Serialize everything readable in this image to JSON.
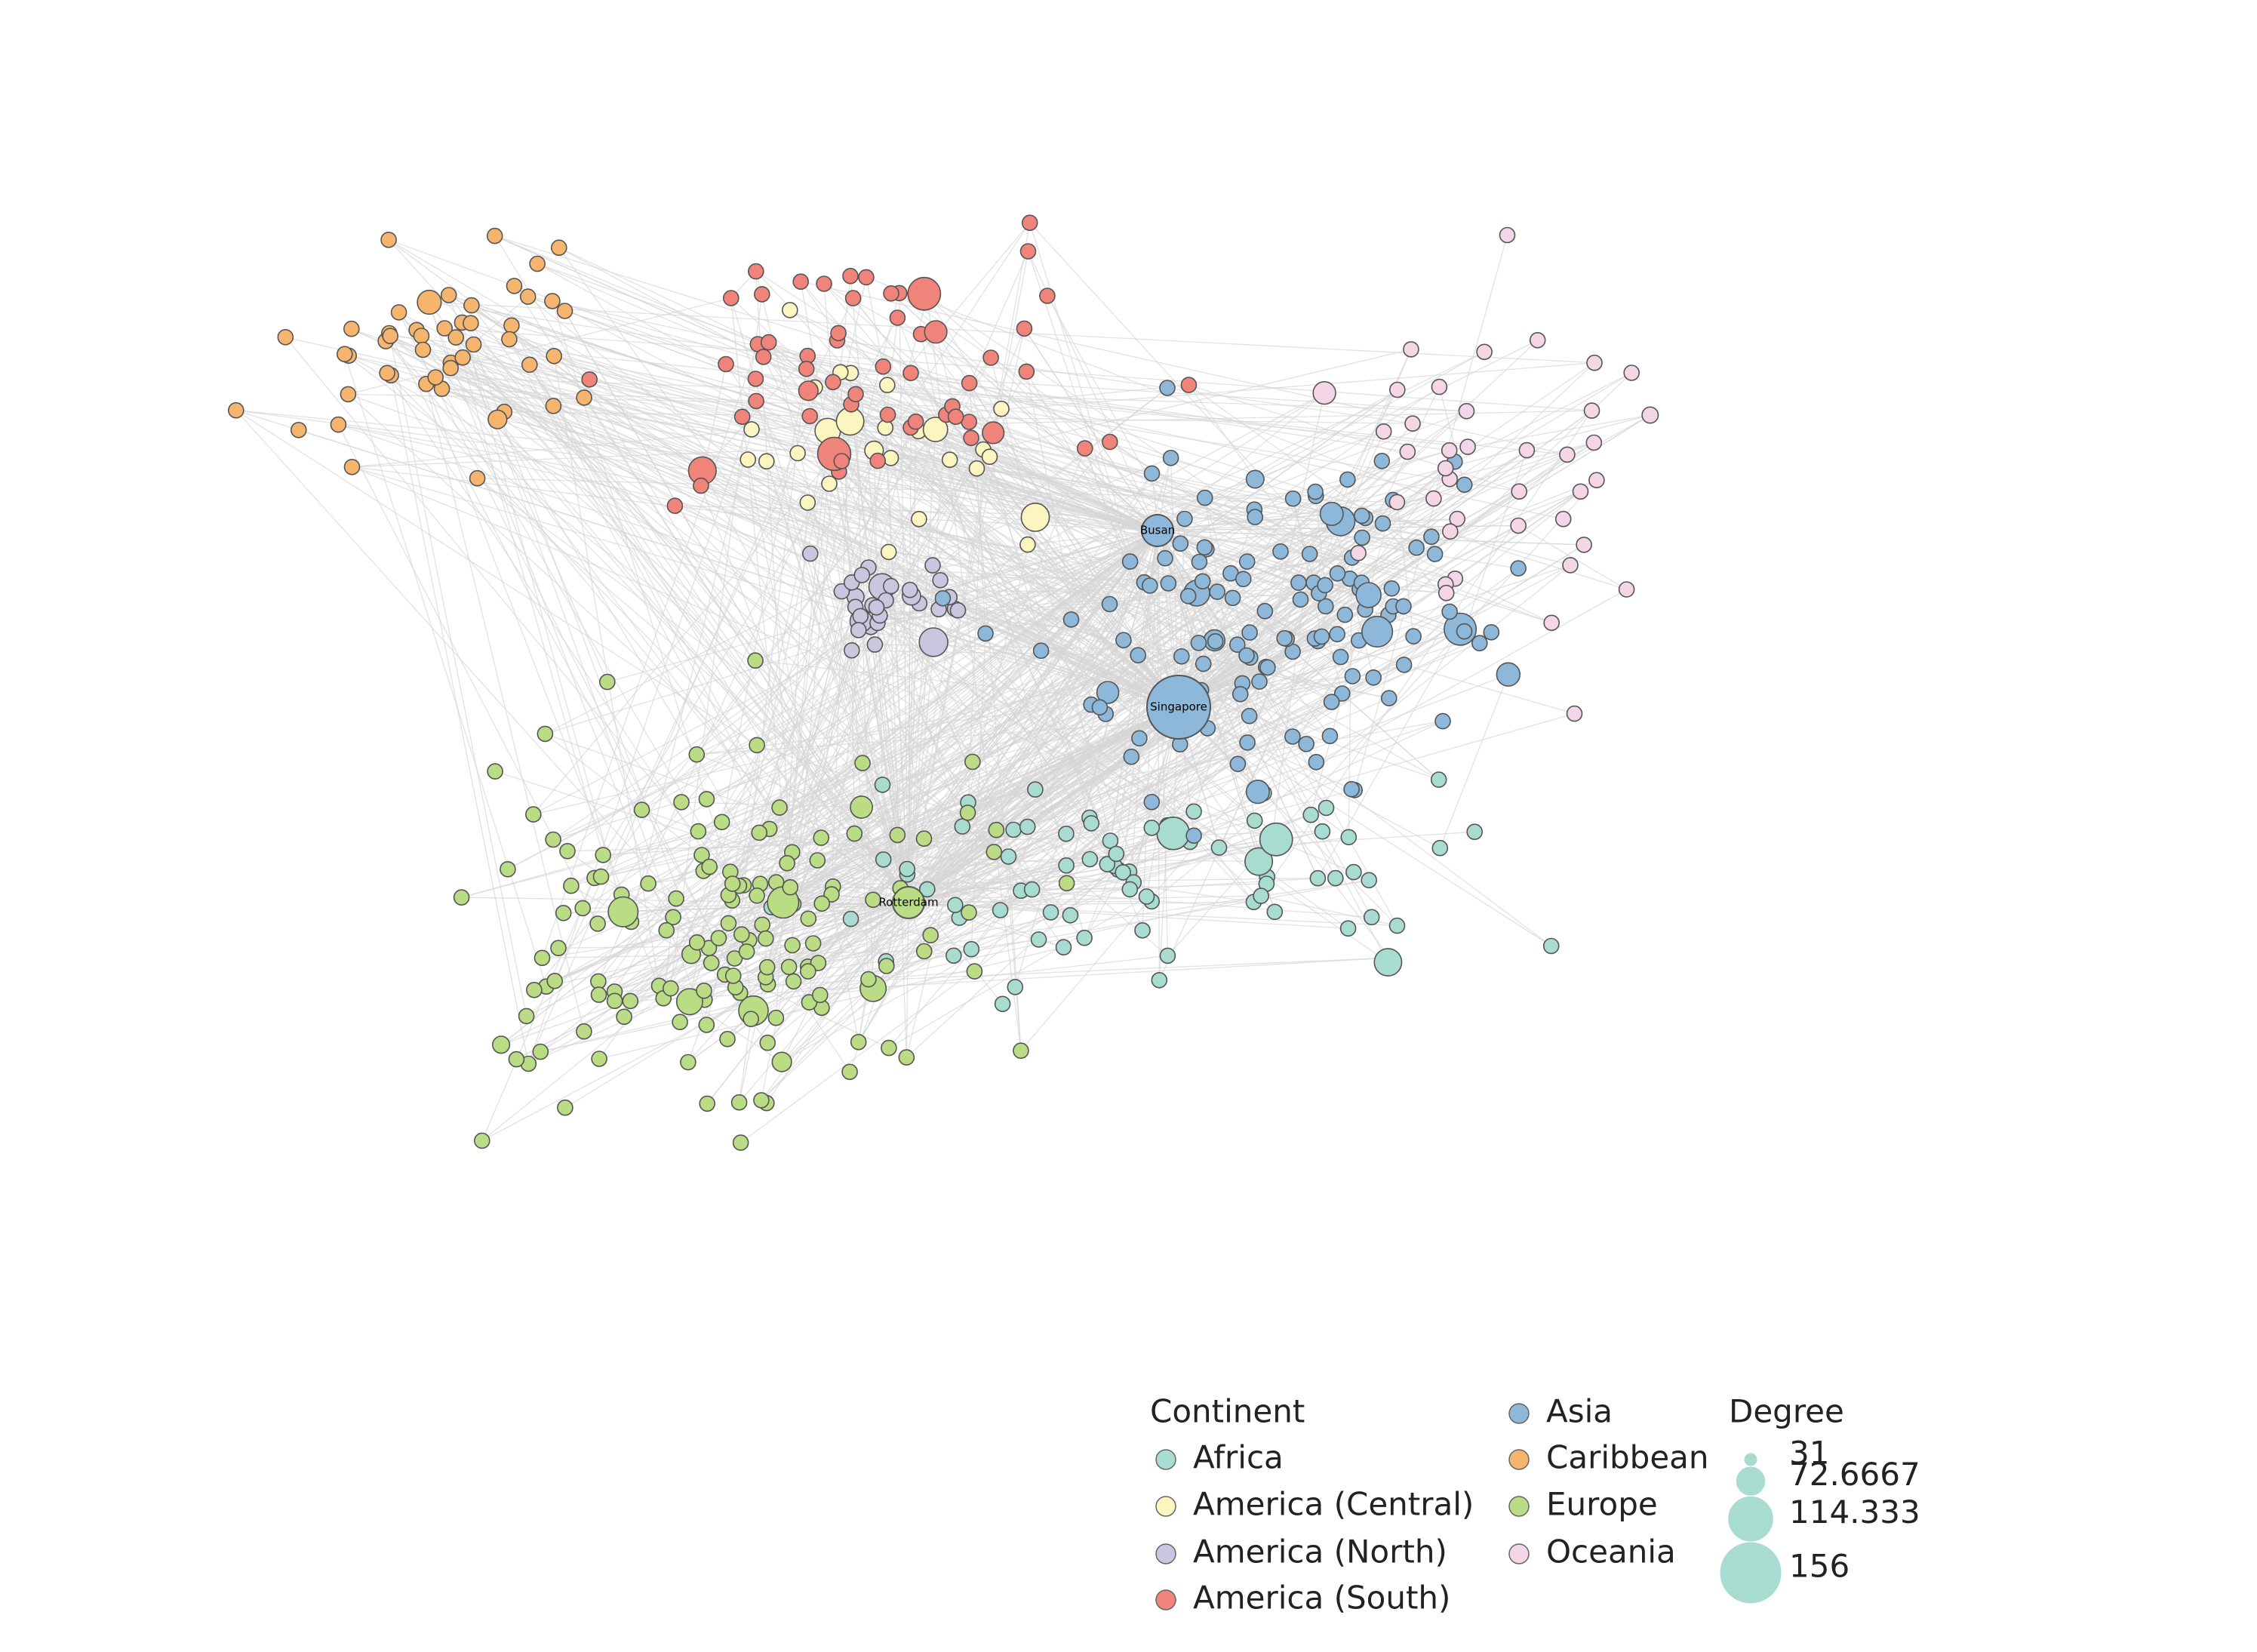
{
  "nodes": [
    {
      "label": "Singapore"
    },
    {
      "label": "Busan"
    },
    {
      "label": "Rotterdam"
    }
  ],
  "legend": {
    "continent_title": "Continent",
    "continents": [
      {
        "name": "Africa",
        "color": "#a8dcd1"
      },
      {
        "name": "America (Central)",
        "color": "#fbf6c0"
      },
      {
        "name": "America (North)",
        "color": "#cbc6e0"
      },
      {
        "name": "America (South)",
        "color": "#f0847a"
      },
      {
        "name": "Asia",
        "color": "#8db8d9"
      },
      {
        "name": "Caribbean",
        "color": "#f6b56e"
      },
      {
        "name": "Europe",
        "color": "#b9dc84"
      },
      {
        "name": "Oceania",
        "color": "#f5d6e6"
      }
    ],
    "degree_title": "Degree",
    "degree_sizes": [
      31,
      72.6667,
      114.333,
      156
    ]
  }
}
